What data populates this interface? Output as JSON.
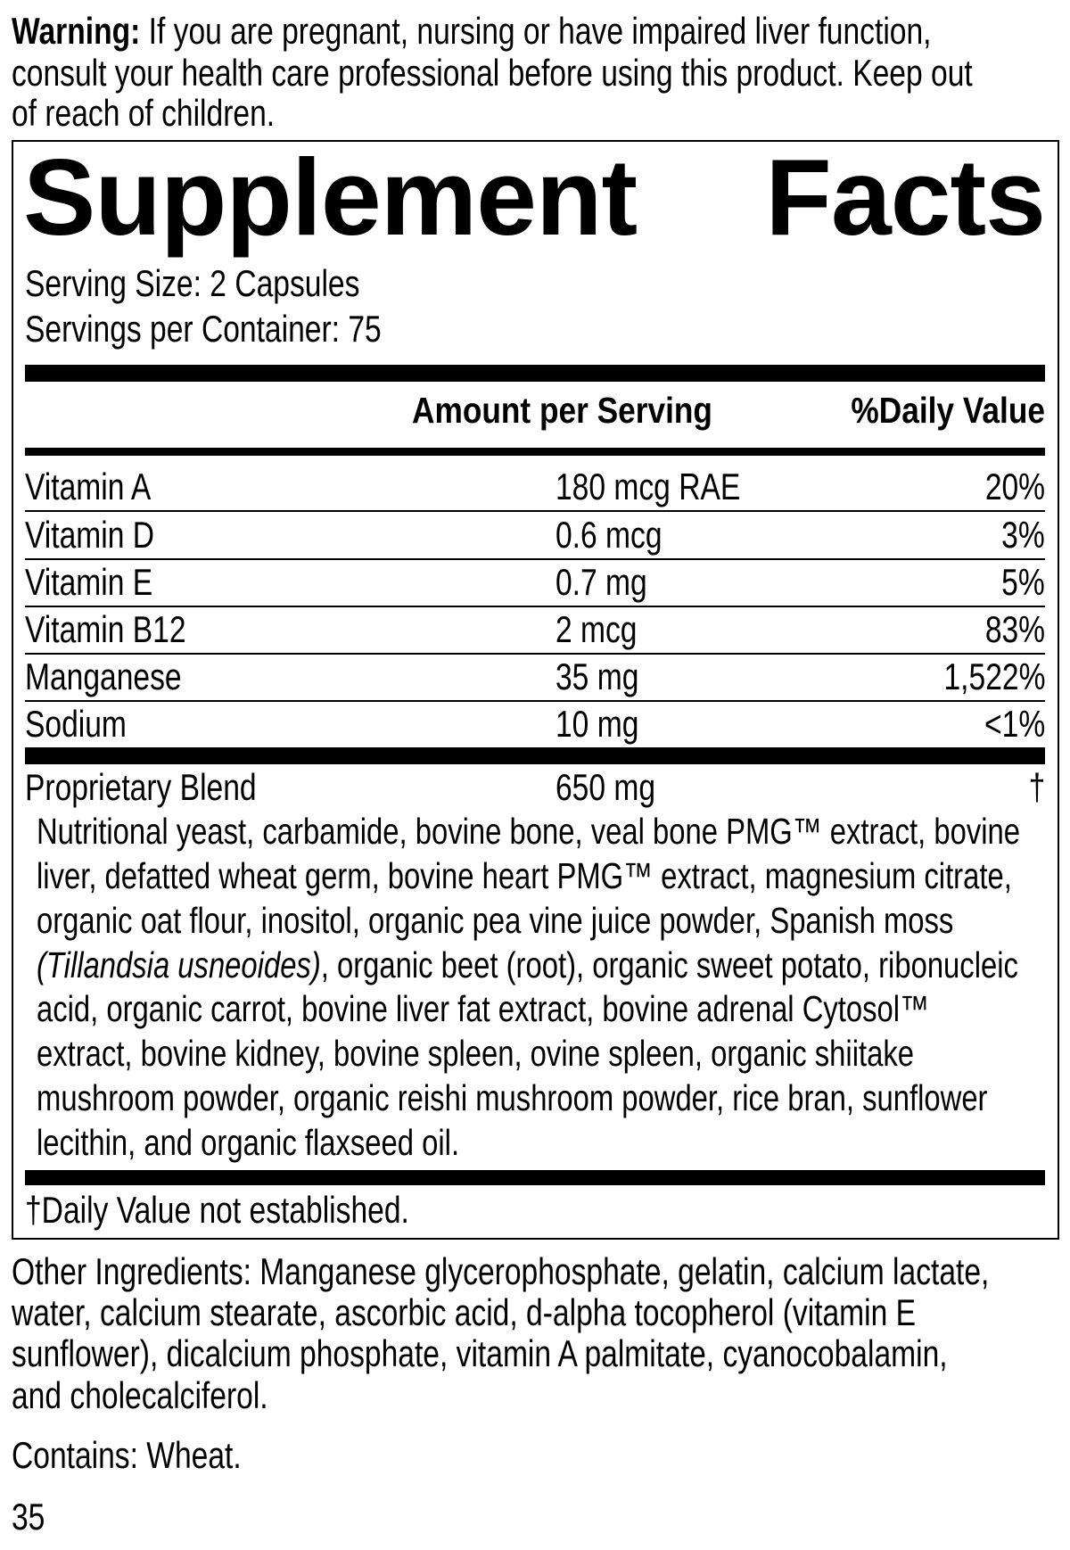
{
  "warning": {
    "label": "Warning:",
    "lines": [
      " If you are pregnant, nursing or have impaired liver function,",
      "consult your health care professional before using this product. Keep out",
      "of reach of children."
    ]
  },
  "facts": {
    "title_left": "Supplement",
    "title_right": "Facts",
    "serving_size": "Serving Size: 2 Capsules",
    "servings_per_container": "Servings per Container: 75",
    "header_amount": "Amount per Serving",
    "header_dv": "%Daily Value",
    "rows": [
      {
        "name": "Vitamin A",
        "amount": "180 mcg RAE",
        "dv": "20%"
      },
      {
        "name": "Vitamin D",
        "amount": "0.6 mcg",
        "dv": "3%"
      },
      {
        "name": "Vitamin E",
        "amount": "0.7 mg",
        "dv": "5%"
      },
      {
        "name": "Vitamin B12",
        "amount": "2 mcg",
        "dv": "83%"
      },
      {
        "name": "Manganese",
        "amount": "35 mg",
        "dv": "1,522%"
      },
      {
        "name": "Sodium",
        "amount": "10 mg",
        "dv": "<1%"
      }
    ],
    "blend": {
      "name": "Proprietary Blend",
      "amount": "650 mg",
      "dv": "†",
      "lines": [
        "Nutritional yeast, carbamide, bovine bone, veal bone PMG™ extract, bovine",
        "liver, defatted wheat germ, bovine heart PMG™ extract, magnesium citrate,",
        "organic oat flour, inositol, organic pea vine juice powder, Spanish moss",
        "",
        "acid, organic carrot, bovine liver fat extract, bovine adrenal Cytosol™",
        "extract, bovine kidney, bovine spleen, ovine spleen, organic shiitake",
        "mushroom powder, organic reishi mushroom powder, rice bran, sunflower",
        "lecithin, and organic flaxseed oil."
      ],
      "line4_italic": "(Tillandsia usneoides)",
      "line4_rest": ", organic beet (root), organic sweet potato, ribonucleic"
    },
    "footnote": "†Daily Value not established."
  },
  "other_ingredients": [
    "Other Ingredients: Manganese glycerophosphate, gelatin, calcium lactate,",
    "water, calcium stearate, ascorbic acid, d-alpha tocopherol (vitamin E",
    "sunflower), dicalcium phosphate, vitamin A palmitate, cyanocobalamin,",
    "and cholecalciferol."
  ],
  "contains": "Contains: Wheat.",
  "page_number": "35"
}
